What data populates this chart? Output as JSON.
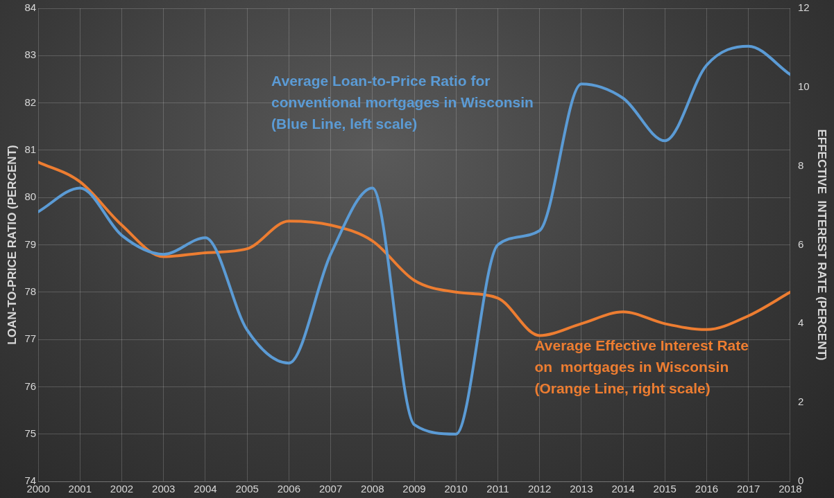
{
  "chart_data": {
    "type": "line",
    "ylabel": "LOAN-TO-PRICE RATIO (PERCENT)",
    "y2label": "EFFECTIVE  INTEREST RATE (PERCENT)",
    "x": [
      2000,
      2001,
      2002,
      2003,
      2004,
      2005,
      2006,
      2007,
      2008,
      2009,
      2010,
      2011,
      2012,
      2013,
      2014,
      2015,
      2016,
      2017,
      2018
    ],
    "xlim": [
      2000,
      2018
    ],
    "xticks": [
      2000,
      2001,
      2002,
      2003,
      2004,
      2005,
      2006,
      2007,
      2008,
      2009,
      2010,
      2011,
      2012,
      2013,
      2014,
      2015,
      2016,
      2017,
      2018
    ],
    "ylim": [
      74,
      84
    ],
    "yticks": [
      74,
      75,
      76,
      77,
      78,
      79,
      80,
      81,
      82,
      83,
      84
    ],
    "y2lim": [
      0,
      12
    ],
    "y2ticks": [
      0,
      2,
      4,
      6,
      8,
      10,
      12
    ],
    "series": [
      {
        "color": "#5b9bd5",
        "values": [
          79.7,
          80.2,
          79.2,
          78.8,
          79.15,
          77.2,
          76.5,
          78.8,
          80.2,
          75.2,
          75.0,
          79.0,
          79.3,
          82.4,
          82.1,
          81.2,
          82.8,
          83.2,
          82.6
        ]
      },
      {
        "color": "#ed7d31",
        "axis": "y2",
        "values": [
          8.1,
          7.6,
          6.5,
          5.7,
          5.8,
          5.9,
          6.6,
          6.5,
          6.1,
          5.1,
          4.8,
          4.65,
          3.7,
          4.0,
          4.3,
          4.0,
          3.85,
          4.2,
          4.8
        ]
      }
    ],
    "annotations": [
      "Average Loan-to-Price Ratio for\nconventional mortgages in Wisconsin\n(Blue Line, left scale)",
      "Average Effective Interest Rate\non  mortgages in Wisconsin\n(Orange Line, right scale)"
    ],
    "grid": true,
    "legend": false,
    "marker": "none",
    "line_style": "solid"
  }
}
